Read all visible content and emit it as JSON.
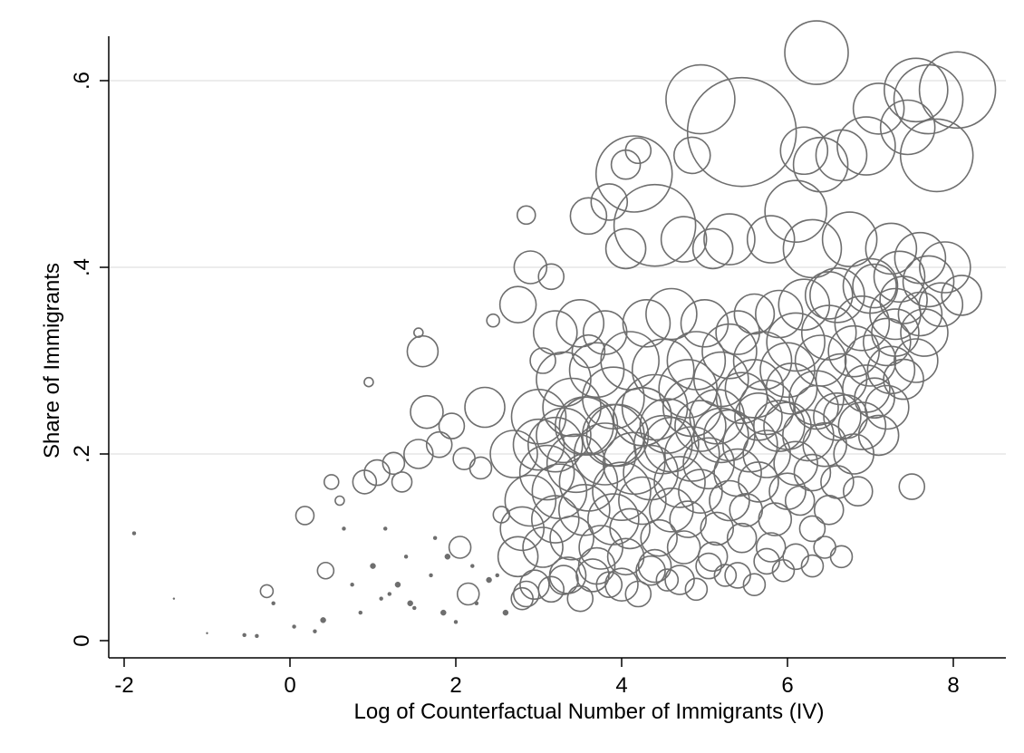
{
  "chart_data": {
    "type": "scatter",
    "subtype": "bubble",
    "title": "",
    "xlabel": "Log of Counterfactual Number of Immigrants (IV)",
    "ylabel": "Share of Immigrants",
    "xlim": [
      -2.3,
      8.6
    ],
    "ylim": [
      0,
      0.65
    ],
    "x_ticks": [
      -2,
      0,
      2,
      4,
      6,
      8
    ],
    "x_tick_labels": [
      "-2",
      "0",
      "2",
      "4",
      "6",
      "8"
    ],
    "y_ticks": [
      0,
      0.2,
      0.4,
      0.6
    ],
    "y_tick_labels": [
      "0",
      ".2",
      ".4",
      ".6"
    ],
    "grid": "horizontal",
    "legend": "none",
    "marker": "hollow-circle",
    "marker_color": "#6e6e6e",
    "gridline_color": "#e6e6e6",
    "background_color": "#ffffff",
    "series": [
      {
        "x": [
          6.35,
          5.45,
          4.95,
          7.55,
          7.7,
          8.05,
          7.1,
          7.45,
          6.95,
          7.8,
          6.4,
          6.65,
          6.2,
          4.4,
          4.15,
          4.85,
          4.2,
          4.05,
          3.85,
          3.6,
          6.1,
          5.3,
          4.05,
          4.75,
          5.1,
          5.8,
          6.3,
          6.75,
          7.25,
          7.6,
          7.9,
          7.05,
          7.4,
          6.5,
          5.6,
          2.85,
          2.9,
          3.15,
          2.45,
          1.55,
          2.75,
          3.05,
          3.6,
          2.35,
          1.95,
          1.65,
          1.25,
          1.05,
          0.95,
          0.5,
          0.6,
          0.18,
          -0.28,
          0.43,
          0.9,
          1.6,
          1.35,
          2.05,
          2.55,
          2.15,
          2.8,
          1.55,
          1.8,
          2.1,
          2.3,
          3.2,
          3.5,
          3.8,
          4.3,
          4.6,
          5.0,
          5.4,
          5.9,
          6.2,
          6.6,
          7.0,
          7.35,
          7.7,
          3.3,
          3.7,
          4.1,
          4.5,
          4.9,
          5.3,
          5.7,
          6.1,
          6.5,
          6.9,
          7.3,
          7.65,
          3.0,
          3.4,
          3.9,
          4.4,
          4.8,
          5.2,
          5.6,
          6.0,
          6.4,
          6.8,
          7.2,
          2.7,
          3.0,
          3.3,
          3.6,
          3.95,
          4.25,
          4.55,
          4.85,
          5.15,
          5.45,
          5.75,
          6.05,
          6.35,
          6.65,
          6.95,
          7.25,
          7.55,
          3.1,
          3.45,
          3.8,
          4.15,
          4.5,
          4.85,
          5.2,
          5.55,
          5.9,
          6.25,
          6.6,
          6.9,
          7.2,
          2.9,
          3.25,
          3.6,
          4.0,
          4.35,
          4.7,
          5.05,
          5.4,
          5.75,
          6.1,
          6.45,
          6.8,
          7.1,
          2.8,
          3.2,
          3.55,
          3.9,
          4.25,
          4.6,
          4.95,
          5.3,
          5.65,
          6.0,
          6.3,
          6.6,
          2.75,
          3.05,
          3.4,
          3.75,
          4.1,
          4.45,
          4.8,
          5.15,
          5.5,
          5.85,
          6.15,
          6.5,
          6.85,
          3.35,
          3.7,
          4.05,
          4.4,
          4.75,
          5.1,
          5.45,
          5.8,
          6.3,
          2.95,
          3.3,
          3.65,
          4.0,
          4.35,
          4.7,
          5.05,
          5.4,
          5.75,
          6.1,
          6.45,
          2.85,
          3.15,
          3.5,
          3.85,
          4.2,
          4.55,
          4.9,
          5.25,
          5.6,
          5.95,
          6.3,
          6.65,
          3.2,
          3.55,
          3.9,
          4.25,
          4.6,
          4.95,
          5.3,
          5.65,
          6.0,
          6.35,
          6.7,
          7.05,
          7.4,
          7.0,
          7.3,
          7.6,
          7.85,
          8.1,
          7.5,
          -1.88,
          -0.55,
          -0.4,
          0.05,
          0.3,
          0.75,
          1.0,
          1.2,
          1.4,
          1.45,
          1.7,
          1.85,
          2.0,
          2.2,
          2.4,
          0.65,
          0.85,
          1.1,
          1.3,
          1.5,
          1.75,
          1.9,
          2.25,
          2.5,
          2.6,
          0.4,
          -0.2,
          -1.0,
          -1.4,
          1.15
        ],
        "y": [
          0.63,
          0.545,
          0.58,
          0.59,
          0.58,
          0.59,
          0.57,
          0.55,
          0.53,
          0.52,
          0.51,
          0.52,
          0.525,
          0.445,
          0.5,
          0.52,
          0.525,
          0.51,
          0.47,
          0.455,
          0.46,
          0.43,
          0.42,
          0.43,
          0.42,
          0.43,
          0.42,
          0.43,
          0.42,
          0.41,
          0.4,
          0.38,
          0.365,
          0.37,
          0.35,
          0.456,
          0.4,
          0.39,
          0.343,
          0.33,
          0.36,
          0.3,
          0.31,
          0.25,
          0.23,
          0.245,
          0.19,
          0.18,
          0.277,
          0.17,
          0.15,
          0.134,
          0.053,
          0.075,
          0.17,
          0.31,
          0.17,
          0.1,
          0.135,
          0.05,
          0.045,
          0.2,
          0.21,
          0.195,
          0.185,
          0.33,
          0.34,
          0.33,
          0.34,
          0.35,
          0.34,
          0.33,
          0.35,
          0.36,
          0.37,
          0.38,
          0.39,
          0.385,
          0.28,
          0.29,
          0.3,
          0.29,
          0.3,
          0.31,
          0.3,
          0.32,
          0.33,
          0.34,
          0.35,
          0.33,
          0.24,
          0.25,
          0.26,
          0.25,
          0.27,
          0.28,
          0.27,
          0.29,
          0.3,
          0.31,
          0.32,
          0.2,
          0.21,
          0.22,
          0.23,
          0.22,
          0.24,
          0.23,
          0.25,
          0.24,
          0.26,
          0.25,
          0.27,
          0.26,
          0.28,
          0.27,
          0.29,
          0.3,
          0.18,
          0.19,
          0.2,
          0.19,
          0.21,
          0.2,
          0.22,
          0.21,
          0.23,
          0.22,
          0.24,
          0.23,
          0.25,
          0.15,
          0.16,
          0.17,
          0.16,
          0.18,
          0.17,
          0.19,
          0.18,
          0.2,
          0.19,
          0.21,
          0.2,
          0.22,
          0.12,
          0.13,
          0.14,
          0.13,
          0.15,
          0.14,
          0.16,
          0.15,
          0.17,
          0.16,
          0.18,
          0.17,
          0.09,
          0.1,
          0.11,
          0.1,
          0.12,
          0.11,
          0.13,
          0.12,
          0.14,
          0.13,
          0.15,
          0.14,
          0.16,
          0.07,
          0.08,
          0.09,
          0.08,
          0.1,
          0.09,
          0.11,
          0.1,
          0.12,
          0.06,
          0.065,
          0.07,
          0.06,
          0.075,
          0.065,
          0.08,
          0.07,
          0.085,
          0.09,
          0.1,
          0.05,
          0.055,
          0.045,
          0.06,
          0.05,
          0.065,
          0.055,
          0.07,
          0.06,
          0.075,
          0.08,
          0.09,
          0.21,
          0.23,
          0.22,
          0.24,
          0.21,
          0.23,
          0.22,
          0.24,
          0.23,
          0.25,
          0.24,
          0.26,
          0.28,
          0.3,
          0.33,
          0.35,
          0.36,
          0.37,
          0.165,
          0.115,
          0.006,
          0.005,
          0.015,
          0.01,
          0.06,
          0.08,
          0.05,
          0.09,
          0.04,
          0.07,
          0.03,
          0.02,
          0.08,
          0.065,
          0.12,
          0.03,
          0.045,
          0.06,
          0.035,
          0.11,
          0.09,
          0.04,
          0.07,
          0.03,
          0.022,
          0.04,
          0.008,
          0.045,
          0.12
        ],
        "size": [
          35,
          60,
          38,
          35,
          38,
          42,
          28,
          30,
          32,
          40,
          30,
          28,
          26,
          45,
          42,
          20,
          14,
          16,
          20,
          20,
          34,
          28,
          22,
          25,
          22,
          26,
          32,
          30,
          28,
          28,
          28,
          24,
          26,
          26,
          22,
          10,
          18,
          14,
          7,
          5,
          20,
          14,
          18,
          22,
          14,
          18,
          12,
          14,
          5,
          8,
          5,
          10,
          7,
          9,
          13,
          17,
          11,
          12,
          9,
          12,
          12,
          16,
          14,
          12,
          12,
          24,
          26,
          24,
          26,
          28,
          26,
          24,
          26,
          28,
          30,
          30,
          28,
          28,
          30,
          30,
          32,
          34,
          32,
          30,
          32,
          32,
          30,
          30,
          28,
          26,
          30,
          32,
          34,
          36,
          32,
          30,
          32,
          30,
          28,
          28,
          26,
          26,
          28,
          30,
          32,
          34,
          32,
          30,
          32,
          30,
          28,
          30,
          28,
          30,
          28,
          26,
          26,
          24,
          30,
          32,
          34,
          34,
          32,
          30,
          30,
          30,
          28,
          28,
          26,
          26,
          24,
          28,
          30,
          32,
          32,
          30,
          28,
          28,
          26,
          26,
          24,
          24,
          22,
          22,
          24,
          26,
          28,
          28,
          26,
          24,
          24,
          22,
          22,
          20,
          20,
          18,
          22,
          22,
          24,
          24,
          22,
          20,
          20,
          18,
          18,
          18,
          16,
          16,
          16,
          20,
          20,
          20,
          18,
          18,
          16,
          16,
          16,
          14,
          16,
          16,
          18,
          18,
          16,
          16,
          14,
          14,
          14,
          14,
          12,
          14,
          14,
          14,
          14,
          14,
          12,
          12,
          12,
          12,
          12,
          12,
          12,
          30,
          32,
          34,
          32,
          30,
          28,
          28,
          26,
          26,
          24,
          24,
          22,
          22,
          28,
          26,
          24,
          24,
          22,
          14,
          2,
          2,
          2,
          2,
          2,
          2,
          3,
          2,
          2,
          3,
          2,
          3,
          2,
          2,
          3,
          2,
          2,
          2,
          3,
          2,
          2,
          3,
          2,
          2,
          3,
          3,
          2,
          1,
          1,
          2
        ]
      }
    ]
  }
}
